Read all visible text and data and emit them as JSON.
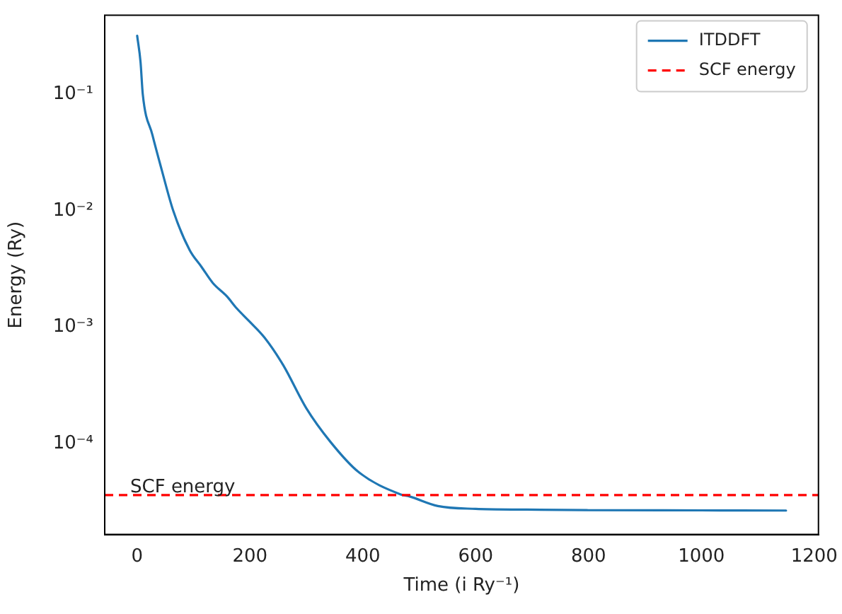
{
  "chart_data": {
    "type": "line",
    "xlabel": "Time (i Ry⁻¹)",
    "ylabel": "Energy (Ry)",
    "log": "y",
    "xlim": [
      -57.5,
      1207.5
    ],
    "xticks": [
      0,
      200,
      400,
      600,
      800,
      1000,
      1200
    ],
    "ylim": [
      1.65e-05,
      0.48
    ],
    "yticks": [
      {
        "value": 0.1,
        "label": "10⁻¹"
      },
      {
        "value": 0.01,
        "label": "10⁻²"
      },
      {
        "value": 0.001,
        "label": "10⁻³"
      },
      {
        "value": 0.0001,
        "label": "10⁻⁴"
      }
    ],
    "grid": false,
    "legend": "top right",
    "marker": "none",
    "line_style": "solid",
    "series": [
      {
        "name": "ITDDFT",
        "color": "#1f77b4",
        "x": [
          0,
          6,
          10,
          27,
          43,
          64,
          93,
          114,
          134,
          159,
          176,
          199,
          226,
          259,
          300,
          342,
          392,
          467,
          483,
          533,
          600,
          690,
          800,
          1000,
          1150
        ],
        "values": [
          0.32,
          0.19,
          0.1,
          0.045,
          0.023,
          0.01,
          0.0046,
          0.0033,
          0.0024,
          0.00184,
          0.00146,
          0.00112,
          0.00081,
          0.00047,
          0.0002,
          0.000104,
          5.7e-05,
          3.65e-05,
          3.5e-05,
          2.9e-05,
          2.74e-05,
          2.7e-05,
          2.67e-05,
          2.66e-05,
          2.65e-05
        ]
      }
    ],
    "ref_lines": [
      {
        "axis": "y",
        "value": 3.6e-05,
        "label": "SCF energy",
        "color": "#ff0000",
        "line_style": "dashed"
      }
    ]
  }
}
